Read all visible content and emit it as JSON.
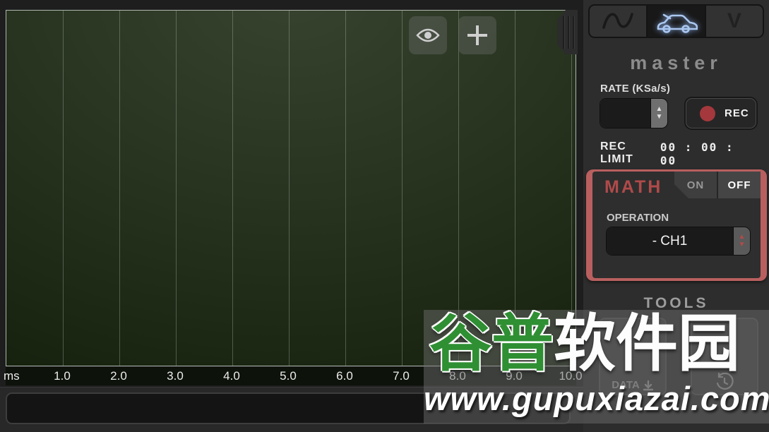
{
  "plot": {
    "x_axis": {
      "unit": "ms",
      "ticks": [
        "1.0",
        "2.0",
        "3.0",
        "4.0",
        "5.0",
        "6.0",
        "7.0",
        "8.0",
        "9.0",
        "10.0"
      ]
    },
    "overlay_buttons": {
      "eye": "visibility",
      "plus": "add-channel"
    }
  },
  "sidebar": {
    "tabs": [
      {
        "icon": "sine-wave-icon",
        "active": false
      },
      {
        "icon": "car-icon",
        "active": true
      },
      {
        "label": "V",
        "active": false
      }
    ],
    "master_title": "master",
    "rate": {
      "label": "RATE (KSa/s)",
      "value": "",
      "rec_button": "REC"
    },
    "rec_limit": {
      "label": "REC LIMIT",
      "value": "00 : 00 : 00"
    },
    "math": {
      "title": "MATH",
      "on_label": "ON",
      "off_label": "OFF",
      "state": "OFF",
      "operation_label": "OPERATION",
      "operation_value": "- CH1"
    },
    "tools": {
      "title": "TOOLS",
      "data_button": "DATA"
    }
  },
  "watermark": {
    "text_green": "谷普",
    "text_white": "软件园",
    "url": "www.gupuxiazai.com"
  },
  "colors": {
    "rec_red": "#a5383c",
    "math_panel_red": "#b95f5f",
    "math_title_red": "#b04a4a",
    "car_glow_blue": "#aac7f0",
    "watermark_green": "#2f8f33",
    "plot_green": "#27331f"
  }
}
